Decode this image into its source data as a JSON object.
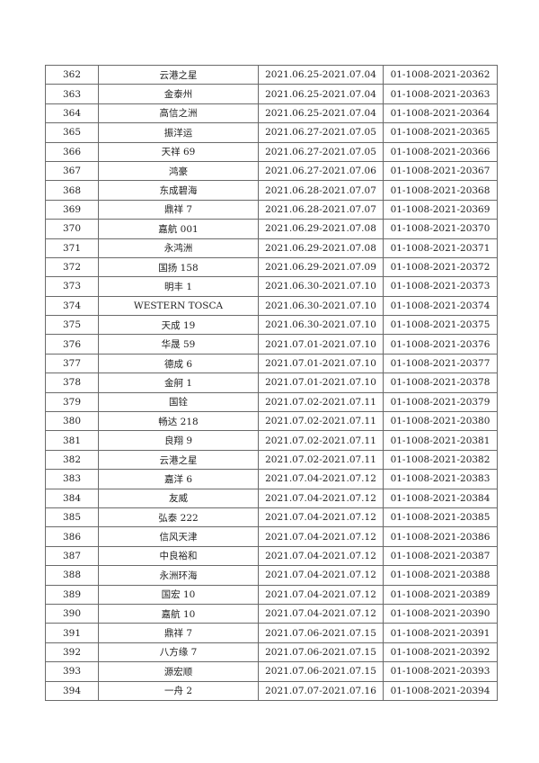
{
  "rows": [
    [
      "362",
      "云港之星",
      "2021.06.25-2021.07.04",
      "01-1008-2021-20362"
    ],
    [
      "363",
      "金泰州",
      "2021.06.25-2021.07.04",
      "01-1008-2021-20363"
    ],
    [
      "364",
      "高信之洲",
      "2021.06.25-2021.07.04",
      "01-1008-2021-20364"
    ],
    [
      "365",
      "振洋运",
      "2021.06.27-2021.07.05",
      "01-1008-2021-20365"
    ],
    [
      "366",
      "天祥 69",
      "2021.06.27-2021.07.05",
      "01-1008-2021-20366"
    ],
    [
      "367",
      "鸿豪",
      "2021.06.27-2021.07.06",
      "01-1008-2021-20367"
    ],
    [
      "368",
      "东成碧海",
      "2021.06.28-2021.07.07",
      "01-1008-2021-20368"
    ],
    [
      "369",
      "鼎祥 7",
      "2021.06.28-2021.07.07",
      "01-1008-2021-20369"
    ],
    [
      "370",
      "嘉航 001",
      "2021.06.29-2021.07.08",
      "01-1008-2021-20370"
    ],
    [
      "371",
      "永鸿洲",
      "2021.06.29-2021.07.08",
      "01-1008-2021-20371"
    ],
    [
      "372",
      "国扬 158",
      "2021.06.29-2021.07.09",
      "01-1008-2021-20372"
    ],
    [
      "373",
      "明丰 1",
      "2021.06.30-2021.07.10",
      "01-1008-2021-20373"
    ],
    [
      "374",
      "WESTERN TOSCA",
      "2021.06.30-2021.07.10",
      "01-1008-2021-20374"
    ],
    [
      "375",
      "天成 19",
      "2021.06.30-2021.07.10",
      "01-1008-2021-20375"
    ],
    [
      "376",
      "华晟 59",
      "2021.07.01-2021.07.10",
      "01-1008-2021-20376"
    ],
    [
      "377",
      "德成 6",
      "2021.07.01-2021.07.10",
      "01-1008-2021-20377"
    ],
    [
      "378",
      "金舸 1",
      "2021.07.01-2021.07.10",
      "01-1008-2021-20378"
    ],
    [
      "379",
      "国铨",
      "2021.07.02-2021.07.11",
      "01-1008-2021-20379"
    ],
    [
      "380",
      "畅达 218",
      "2021.07.02-2021.07.11",
      "01-1008-2021-20380"
    ],
    [
      "381",
      "良翔 9",
      "2021.07.02-2021.07.11",
      "01-1008-2021-20381"
    ],
    [
      "382",
      "云港之星",
      "2021.07.02-2021.07.11",
      "01-1008-2021-20382"
    ],
    [
      "383",
      "嘉洋 6",
      "2021.07.04-2021.07.12",
      "01-1008-2021-20383"
    ],
    [
      "384",
      "友威",
      "2021.07.04-2021.07.12",
      "01-1008-2021-20384"
    ],
    [
      "385",
      "弘泰 222",
      "2021.07.04-2021.07.12",
      "01-1008-2021-20385"
    ],
    [
      "386",
      "信风天津",
      "2021.07.04-2021.07.12",
      "01-1008-2021-20386"
    ],
    [
      "387",
      "中良裕和",
      "2021.07.04-2021.07.12",
      "01-1008-2021-20387"
    ],
    [
      "388",
      "永洲环海",
      "2021.07.04-2021.07.12",
      "01-1008-2021-20388"
    ],
    [
      "389",
      "国宏 10",
      "2021.07.04-2021.07.12",
      "01-1008-2021-20389"
    ],
    [
      "390",
      "嘉航 10",
      "2021.07.04-2021.07.12",
      "01-1008-2021-20390"
    ],
    [
      "391",
      "鼎祥 7",
      "2021.07.06-2021.07.15",
      "01-1008-2021-20391"
    ],
    [
      "392",
      "八方缘 7",
      "2021.07.06-2021.07.15",
      "01-1008-2021-20392"
    ],
    [
      "393",
      "源宏顺",
      "2021.07.06-2021.07.15",
      "01-1008-2021-20393"
    ],
    [
      "394",
      "一舟 2",
      "2021.07.07-2021.07.16",
      "01-1008-2021-20394"
    ]
  ]
}
